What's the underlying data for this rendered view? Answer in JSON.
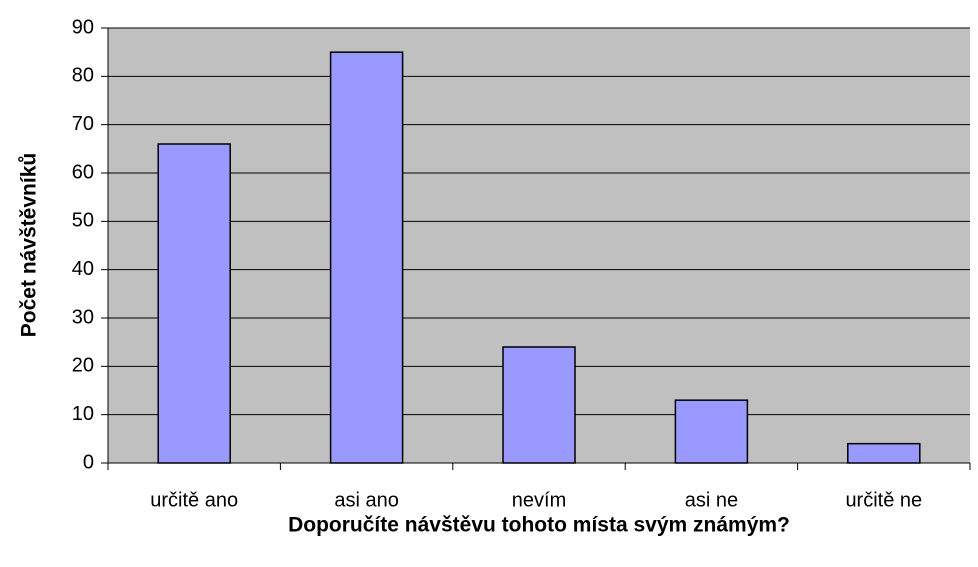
{
  "chart_data": {
    "type": "bar",
    "x_label": "Doporučíte návštěvu tohoto místa svým známým?",
    "y_label": "Počet návštěvníků",
    "categories": [
      "určitě ano",
      "asi ano",
      "nevím",
      "asi ne",
      "určitě ne"
    ],
    "values": [
      66,
      85,
      24,
      13,
      4
    ],
    "color": "#9999ff",
    "ylim": [
      0,
      90
    ],
    "yticks": [
      0,
      10,
      20,
      30,
      40,
      50,
      60,
      70,
      80,
      90
    ],
    "grid": true
  }
}
